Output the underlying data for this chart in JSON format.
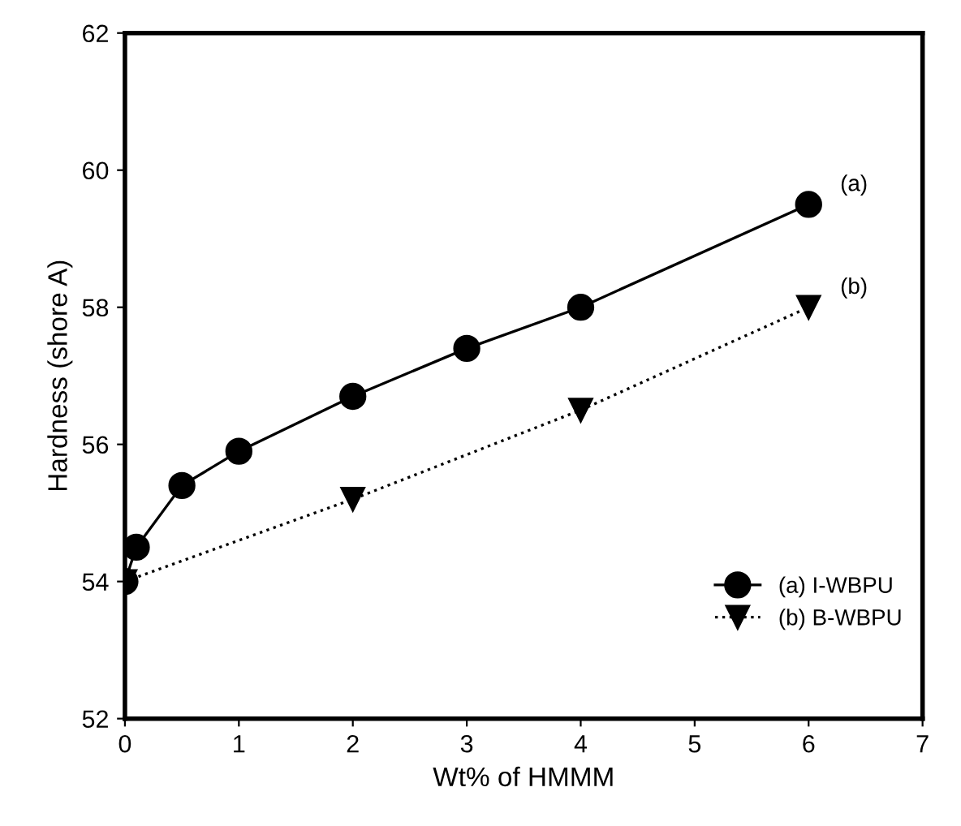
{
  "chart_data": {
    "type": "line",
    "xlabel": "Wt% of HMMM",
    "ylabel": "Hardness (shore A)",
    "xlim": [
      0,
      7
    ],
    "xticks": [
      0,
      1,
      2,
      3,
      4,
      5,
      6,
      7
    ],
    "ylim": [
      52,
      62
    ],
    "yticks": [
      52,
      54,
      56,
      58,
      60,
      62
    ],
    "series": [
      {
        "name": "(a) I-WBPU",
        "color": "#000000",
        "marker": "circle",
        "line_style": "solid",
        "x": [
          0,
          0.1,
          0.5,
          1,
          2,
          3,
          4,
          6
        ],
        "values": [
          54.0,
          54.5,
          55.4,
          55.9,
          56.7,
          57.4,
          58.0,
          59.5
        ]
      },
      {
        "name": "(b) B-WBPU",
        "color": "#000000",
        "marker": "triangle",
        "line_style": "dotted",
        "x": [
          0,
          2,
          4,
          6
        ],
        "values": [
          54.0,
          55.2,
          56.5,
          58.0
        ]
      }
    ],
    "annotations": [
      {
        "text": "(a)",
        "x": 6,
        "y": 59.5
      },
      {
        "text": "(b)",
        "x": 6,
        "y": 58.0
      }
    ],
    "legend": "bottom right",
    "grid": false
  }
}
